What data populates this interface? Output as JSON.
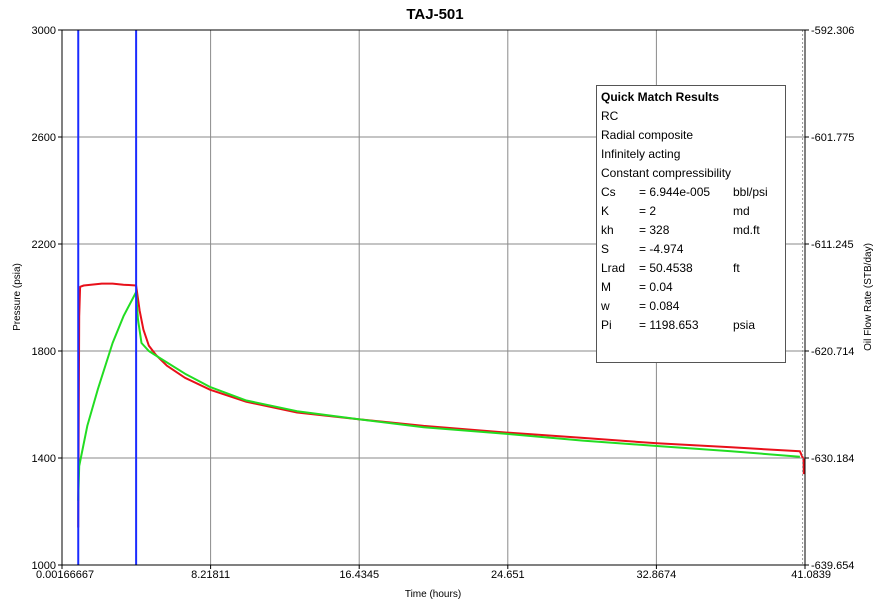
{
  "chart_data": {
    "type": "line",
    "title": "TAJ-501",
    "xlabel": "Time (hours)",
    "ylabel": "Pressure (psia)",
    "y2label": "Oil Flow Rate (STB/day)",
    "xlim": [
      0.00166667,
      41.0839
    ],
    "ylim": [
      1000,
      3000
    ],
    "y2lim": [
      -639.654,
      -592.306
    ],
    "x_ticks": [
      "0.00166667",
      "8.21811",
      "16.4345",
      "24.651",
      "32.8674",
      "41.0839"
    ],
    "y_ticks": [
      "1000",
      "1400",
      "1800",
      "2200",
      "2600",
      "3000"
    ],
    "y2_ticks": [
      "-639.654",
      "-630.184",
      "-620.714",
      "-611.245",
      "-601.775",
      "-592.306"
    ],
    "grid": true,
    "series": [
      {
        "color": "#e8101a",
        "x": [
          0.9,
          0.95,
          1.0,
          1.2,
          1.6,
          2.2,
          2.8,
          3.4,
          4.1,
          4.3,
          4.5,
          4.8,
          5.2,
          5.8,
          6.8,
          8.2,
          10.2,
          13.0,
          16.4,
          20.0,
          24.6,
          28.8,
          32.9,
          37.0,
          40.8,
          41.0,
          41.02
        ],
        "y": [
          1140,
          1930,
          2040,
          2045,
          2048,
          2052,
          2052,
          2048,
          2045,
          1950,
          1880,
          1820,
          1785,
          1745,
          1700,
          1655,
          1610,
          1570,
          1545,
          1520,
          1495,
          1475,
          1455,
          1440,
          1425,
          1395,
          1340
        ]
      },
      {
        "color": "#22dd22",
        "x": [
          0.9,
          0.95,
          1.4,
          2.0,
          2.8,
          3.4,
          4.1,
          4.2,
          4.4,
          4.8,
          5.5,
          6.8,
          8.2,
          10.2,
          13.0,
          16.4,
          20.0,
          24.6,
          28.8,
          32.9,
          37.0,
          40.8
        ],
        "y": [
          1240,
          1370,
          1520,
          1660,
          1830,
          1930,
          2020,
          1920,
          1830,
          1800,
          1770,
          1715,
          1665,
          1615,
          1575,
          1545,
          1515,
          1490,
          1465,
          1445,
          1425,
          1405
        ]
      }
    ],
    "vertical_lines": [
      {
        "x": 0.9,
        "color": "#1a2bff"
      },
      {
        "x": 4.1,
        "color": "#1a2bff"
      },
      {
        "x": 40.95,
        "color": "#999999",
        "dash": true
      }
    ],
    "legend_title": "Quick Match Results",
    "legend_lines": [
      "RC",
      "Radial composite",
      "Infinitely acting",
      "Constant compressibility"
    ],
    "legend_params": [
      {
        "name": "Cs",
        "value": "= 6.944e-005",
        "unit": "bbl/psi"
      },
      {
        "name": "K",
        "value": "= 2",
        "unit": "md"
      },
      {
        "name": "kh",
        "value": "= 328",
        "unit": "md.ft"
      },
      {
        "name": "S",
        "value": "= -4.974",
        "unit": ""
      },
      {
        "name": "Lrad",
        "value": "= 50.4538",
        "unit": "ft"
      },
      {
        "name": "M",
        "value": "= 0.04",
        "unit": ""
      },
      {
        "name": "w",
        "value": "= 0.084",
        "unit": ""
      },
      {
        "name": "Pi",
        "value": "= 1198.653",
        "unit": "psia"
      }
    ],
    "legend_placement": "top-right"
  }
}
